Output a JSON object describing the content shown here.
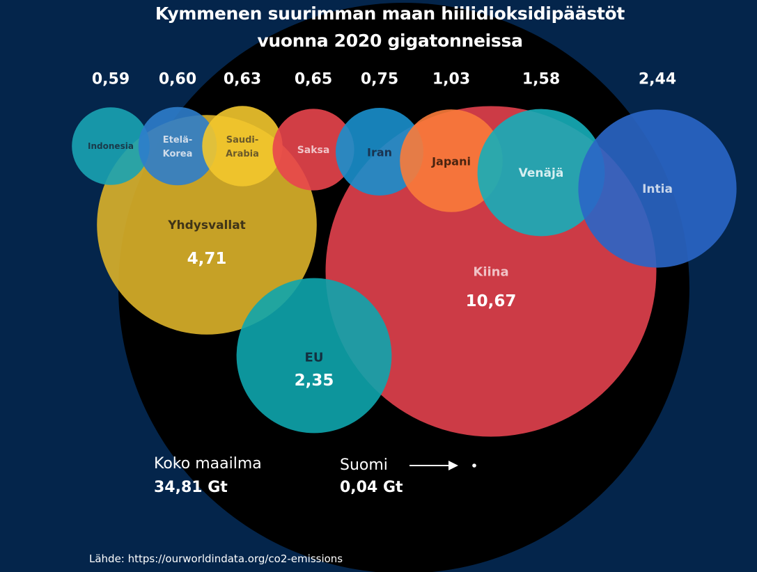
{
  "title_line1": "Kymmenen suurimman maan hiilidioksidipäästöt",
  "title_line2": "vuonna 2020 gigatonneissa",
  "source": "Lähde: https://ourworldindata.org/co2-emissions",
  "world": {
    "label": "Koko maailma",
    "value": "34,81 Gt"
  },
  "finland": {
    "label": "Suomi",
    "value": "0,04 Gt"
  },
  "colors": {
    "background": "#04254b",
    "world_circle": "#000000",
    "text": "#ffffff"
  },
  "chart_data": {
    "type": "bubble",
    "title": "Kymmenen suurimman maan hiilidioksidipäästöt vuonna 2020 gigatonneissa",
    "unit": "Gt",
    "total": {
      "name": "Koko maailma",
      "value": 34.81
    },
    "reference": {
      "name": "Suomi",
      "value": 0.04
    },
    "series": [
      {
        "name": "Indonesia",
        "value": 0.59,
        "label": "0,59",
        "color": "#1aa3b3",
        "label_color": "#1a3a4a",
        "row": "top"
      },
      {
        "name": "Etelä-Korea",
        "value": 0.6,
        "label": "0,60",
        "color": "#2e7dcb",
        "label_color": "#d0dcea",
        "row": "top"
      },
      {
        "name": "Saudi-Arabia",
        "value": 0.63,
        "label": "0,63",
        "color": "#f2c62e",
        "label_color": "#6b5a2a",
        "row": "top"
      },
      {
        "name": "Saksa",
        "value": 0.65,
        "label": "0,65",
        "color": "#e8454d",
        "label_color": "#f0c4c8",
        "row": "top"
      },
      {
        "name": "Iran",
        "value": 0.75,
        "label": "0,75",
        "color": "#1a8fcc",
        "label_color": "#1a3350",
        "row": "top"
      },
      {
        "name": "Japani",
        "value": 1.03,
        "label": "1,03",
        "color": "#fa7b3a",
        "label_color": "#4a2410",
        "row": "top"
      },
      {
        "name": "Venäjä",
        "value": 1.58,
        "label": "1,58",
        "color": "#16aeb9",
        "label_color": "#d6eef0",
        "row": "top"
      },
      {
        "name": "Intia",
        "value": 2.44,
        "label": "2,44",
        "color": "#2a66c6",
        "label_color": "#c7d5ea",
        "row": "top"
      },
      {
        "name": "Yhdysvallat",
        "value": 4.71,
        "label": "4,71",
        "color": "#dbb22a",
        "label_color": "#3f3418",
        "row": "large"
      },
      {
        "name": "Kiina",
        "value": 10.67,
        "label": "10,67",
        "color": "#e2414e",
        "label_color": "#f0c2c6",
        "row": "large"
      },
      {
        "name": "EU",
        "value": 2.35,
        "label": "2,35",
        "color": "#0ea5ad",
        "label_color": "#133040",
        "row": "large"
      }
    ]
  }
}
